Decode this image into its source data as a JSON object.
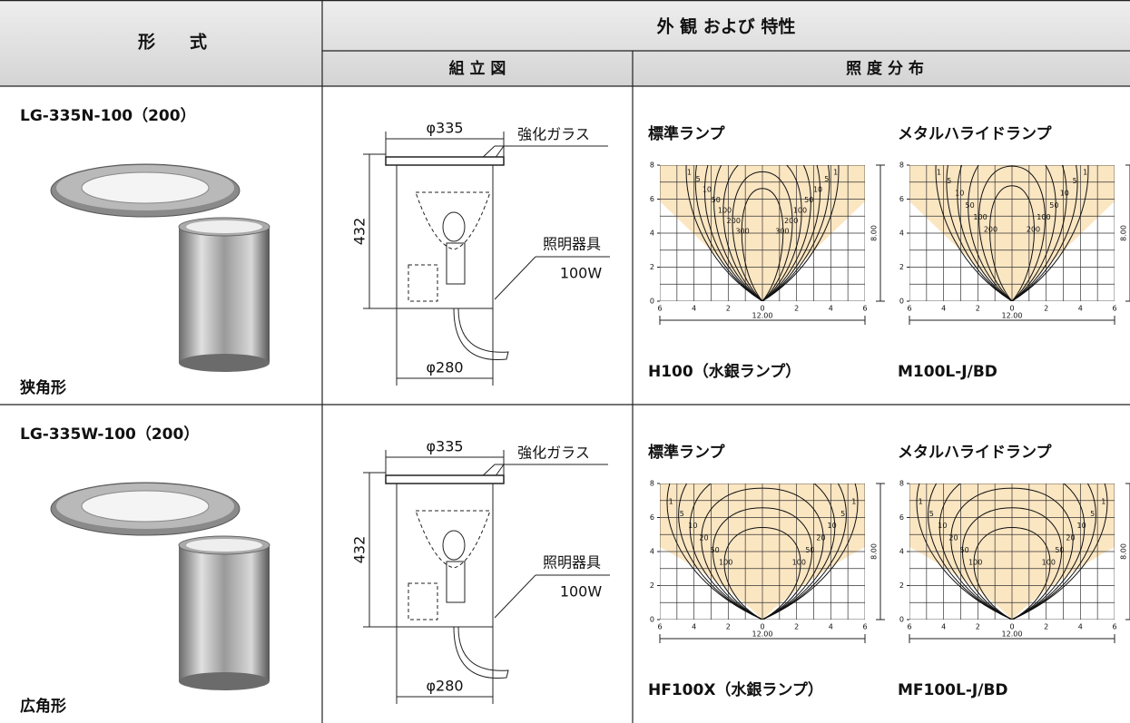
{
  "header": {
    "form": "形　　式",
    "appearance": "外 観 および 特性",
    "assembly": "組 立 図",
    "distribution": "照 度 分 布"
  },
  "chart_axes": {
    "yticks": [
      0,
      2,
      4,
      6,
      8
    ],
    "xticks": [
      6,
      4,
      2,
      0,
      2,
      4,
      6
    ],
    "width": "12.00",
    "height": "8.00"
  },
  "rows": [
    {
      "model": "LG-335N-100（200）",
      "shape": "狭角形",
      "assembly": {
        "top_diameter": "φ335",
        "glass": "強化ガラス",
        "height": "432",
        "fixture": "照明器具",
        "watt": "100W",
        "bottom_diameter": "φ280"
      },
      "charts": [
        {
          "title": "標準ランプ",
          "lamp": "H100（水銀ランプ）",
          "contours": [
            "1",
            "5",
            "10",
            "50",
            "100",
            "200",
            "300"
          ]
        },
        {
          "title": "メタルハライドランプ",
          "lamp": "M100L-J/BD",
          "contours": [
            "1",
            "5",
            "10",
            "50",
            "100",
            "200"
          ]
        }
      ]
    },
    {
      "model": "LG-335W-100（200）",
      "shape": "広角形",
      "assembly": {
        "top_diameter": "φ335",
        "glass": "強化ガラス",
        "height": "432",
        "fixture": "照明器具",
        "watt": "100W",
        "bottom_diameter": "φ280"
      },
      "charts": [
        {
          "title": "標準ランプ",
          "lamp": "HF100X（水銀ランプ）",
          "contours": [
            "1",
            "5",
            "10",
            "20",
            "50",
            "100"
          ]
        },
        {
          "title": "メタルハライドランプ",
          "lamp": "MF100L-J/BD",
          "contours": [
            "1",
            "5",
            "10",
            "20",
            "50",
            "100"
          ]
        }
      ]
    }
  ]
}
